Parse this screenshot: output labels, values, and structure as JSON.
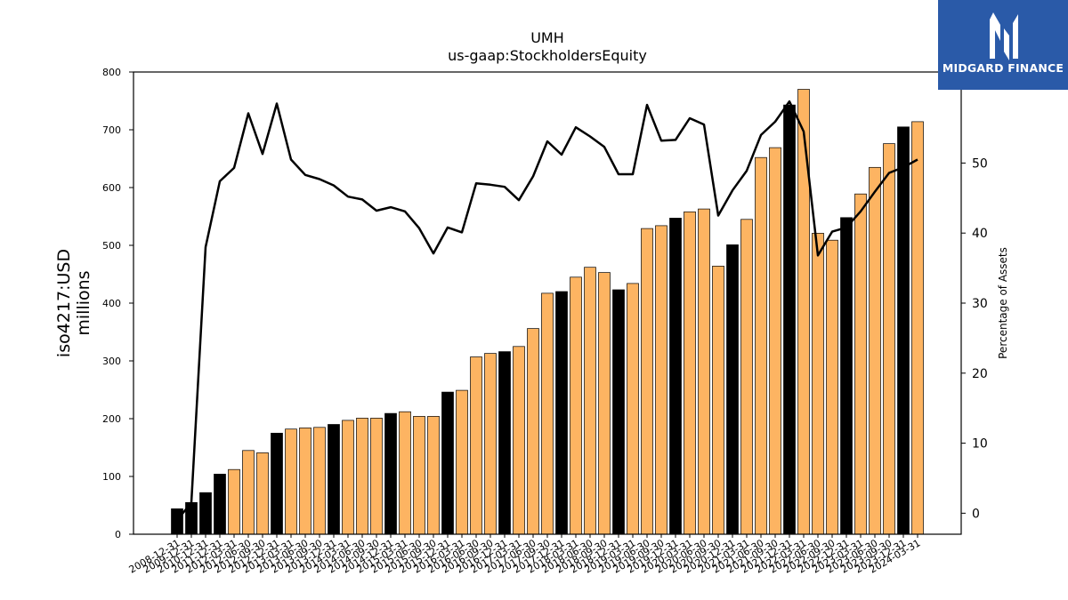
{
  "brand": {
    "name": "MIDGARD FINANCE",
    "logo_icon": "midgard-logo-icon",
    "color": "#2a5aa8"
  },
  "chart_data": {
    "type": "bar",
    "title": "UMH",
    "subtitle": "us-gaap:StockholdersEquity",
    "ylabel": "iso4217:USD\nmillions",
    "y2label": "Percentage of Assets",
    "ylim": [
      0,
      800
    ],
    "y2lim": [
      -3,
      63
    ],
    "yticks": [
      0,
      100,
      200,
      300,
      400,
      500,
      600,
      700,
      800
    ],
    "y2ticks": [
      0,
      10,
      20,
      30,
      40,
      50
    ],
    "colors": {
      "annual": "#000000",
      "quarterly": "#fdb462",
      "line": "#000000"
    },
    "categories": [
      "2008-12-31",
      "2009-12-31",
      "2010-12-31",
      "2011-12-31",
      "2012-03-31",
      "2012-06-30",
      "2012-09-30",
      "2012-12-31",
      "2013-03-31",
      "2013-06-30",
      "2013-09-30",
      "2013-12-31",
      "2014-03-31",
      "2014-06-30",
      "2014-09-30",
      "2014-12-31",
      "2015-03-31",
      "2015-06-30",
      "2015-09-30",
      "2015-12-31",
      "2016-03-31",
      "2016-06-30",
      "2016-09-30",
      "2016-12-31",
      "2017-03-31",
      "2017-06-30",
      "2017-09-30",
      "2017-12-31",
      "2018-03-31",
      "2018-06-30",
      "2018-09-30",
      "2018-12-31",
      "2019-03-31",
      "2019-06-30",
      "2019-09-30",
      "2019-12-31",
      "2020-03-31",
      "2020-06-30",
      "2020-09-30",
      "2020-12-31",
      "2021-03-31",
      "2021-06-30",
      "2021-09-30",
      "2021-12-31",
      "2022-03-31",
      "2022-06-30",
      "2022-09-30",
      "2022-12-31",
      "2023-03-31",
      "2023-06-30",
      "2023-09-30",
      "2023-12-31",
      "2024-03-31"
    ],
    "annual_flags": [
      1,
      1,
      1,
      1,
      0,
      0,
      0,
      1,
      0,
      0,
      0,
      1,
      0,
      0,
      0,
      1,
      0,
      0,
      0,
      1,
      0,
      0,
      0,
      1,
      0,
      0,
      0,
      1,
      0,
      0,
      0,
      1,
      0,
      0,
      0,
      1,
      0,
      0,
      0,
      1,
      0,
      0,
      0,
      1,
      0,
      0,
      0,
      1,
      0,
      0,
      0,
      1,
      0
    ],
    "series": [
      {
        "name": "StockholdersEquity",
        "axis": "left",
        "kind": "bar",
        "values": [
          44,
          55,
          72,
          104,
          112,
          145,
          141,
          175,
          182,
          184,
          185,
          190,
          197,
          201,
          201,
          209,
          212,
          204,
          204,
          246,
          249,
          307,
          313,
          316,
          325,
          356,
          417,
          420,
          445,
          462,
          453,
          423,
          434,
          529,
          534,
          547,
          558,
          563,
          464,
          501,
          545,
          652,
          669,
          743,
          770,
          521,
          509,
          548,
          589,
          635,
          676,
          705,
          714
        ]
      },
      {
        "name": "Percentage of Assets",
        "axis": "right",
        "kind": "line",
        "values": [
          -1,
          1.5,
          38,
          47.4,
          49.3,
          57.1,
          51.3,
          58.5,
          50.5,
          48.3,
          47.7,
          46.8,
          45.2,
          44.8,
          43.2,
          43.7,
          43.1,
          40.7,
          37.1,
          40.8,
          40.1,
          47.1,
          46.9,
          46.6,
          44.7,
          48.1,
          53.1,
          51.2,
          55.1,
          53.8,
          52.3,
          48.4,
          48.4,
          58.3,
          53.2,
          53.3,
          56.4,
          55.5,
          42.5,
          46.1,
          48.9,
          54,
          55.9,
          58.8,
          54.5,
          36.8,
          40.2,
          40.8,
          43.1,
          45.9,
          48.6,
          49.4,
          50.5
        ]
      }
    ]
  }
}
